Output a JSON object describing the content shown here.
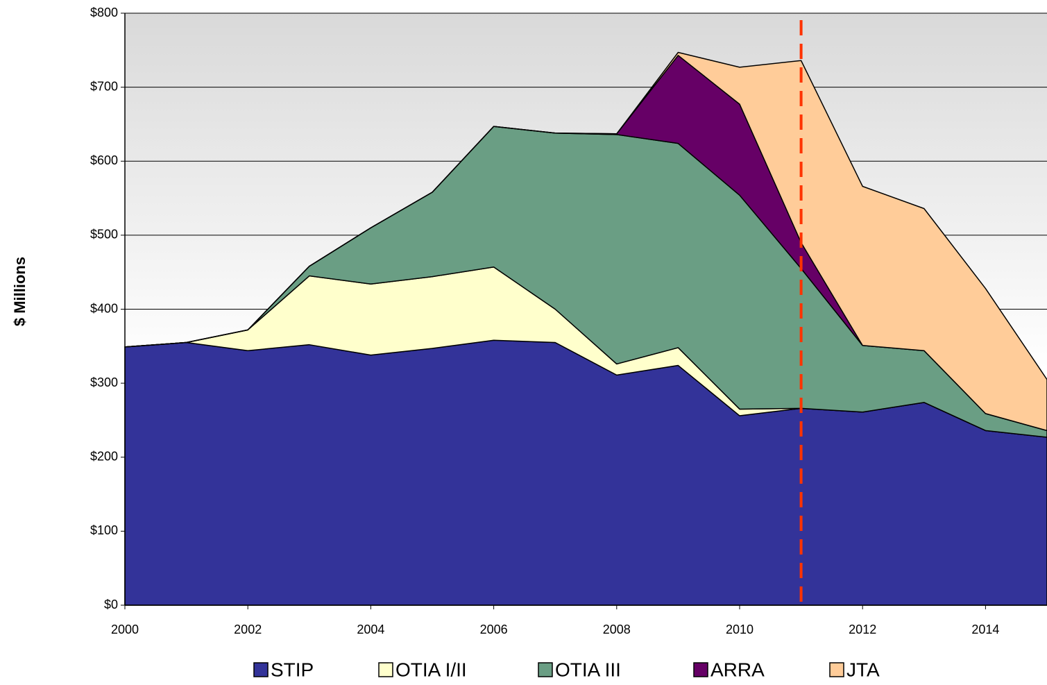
{
  "chart_data": {
    "type": "stacked_area",
    "y_axis_label": "$ Millions",
    "x": [
      2000,
      2001,
      2002,
      2003,
      2004,
      2005,
      2006,
      2007,
      2008,
      2009,
      2010,
      2011,
      2012,
      2013,
      2014,
      2015
    ],
    "series": [
      {
        "name": "STIP",
        "color": "#333399",
        "values": [
          349,
          355,
          344,
          352,
          338,
          347,
          358,
          355,
          311,
          324,
          256,
          266,
          261,
          274,
          236,
          227
        ]
      },
      {
        "name": "OTIA I/II",
        "color": "#ffffcc",
        "values": [
          0,
          0,
          28,
          93,
          96,
          97,
          99,
          45,
          15,
          24,
          9,
          0,
          0,
          0,
          0,
          0
        ]
      },
      {
        "name": "OTIA III",
        "color": "#6a9e84",
        "values": [
          0,
          0,
          0,
          13,
          76,
          114,
          190,
          238,
          310,
          276,
          289,
          189,
          90,
          70,
          23,
          9
        ]
      },
      {
        "name": "ARRA",
        "color": "#660066",
        "values": [
          0,
          0,
          0,
          0,
          0,
          0,
          0,
          0,
          1,
          119,
          123,
          35,
          0,
          0,
          0,
          0
        ]
      },
      {
        "name": "JTA",
        "color": "#ffcc99",
        "values": [
          0,
          0,
          0,
          0,
          0,
          0,
          0,
          0,
          0,
          4,
          50,
          246,
          215,
          192,
          169,
          69
        ]
      }
    ],
    "xlim": [
      2000,
      2015
    ],
    "xticks": [
      2000,
      2002,
      2004,
      2006,
      2008,
      2010,
      2012,
      2014
    ],
    "ylim": [
      0,
      800
    ],
    "yticks": [
      {
        "value": 0,
        "label": "$0"
      },
      {
        "value": 100,
        "label": "$100"
      },
      {
        "value": 200,
        "label": "$200"
      },
      {
        "value": 300,
        "label": "$300"
      },
      {
        "value": 400,
        "label": "$400"
      },
      {
        "value": 500,
        "label": "$500"
      },
      {
        "value": 600,
        "label": "$600"
      },
      {
        "value": 700,
        "label": "$700"
      },
      {
        "value": 800,
        "label": "$800"
      }
    ],
    "grid": true,
    "legend": "bottom",
    "reference_line_x": 2011,
    "reference_line_color": "#ff3300"
  }
}
